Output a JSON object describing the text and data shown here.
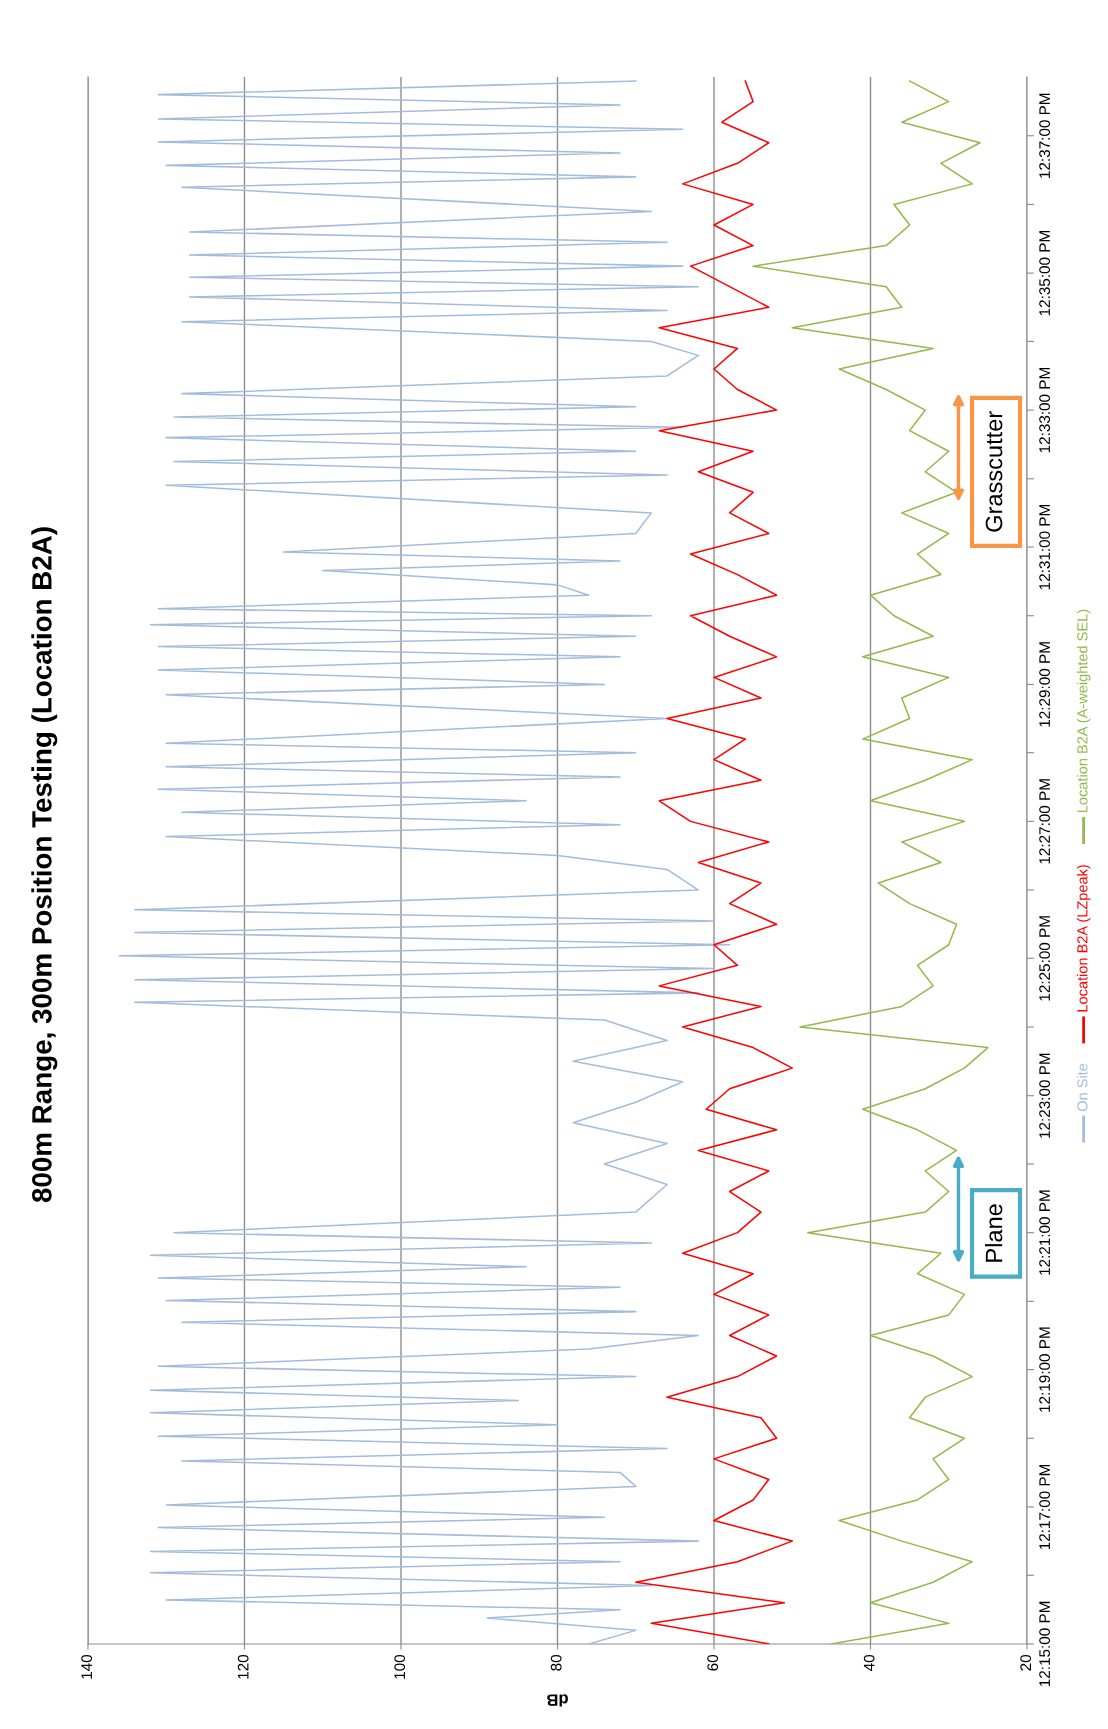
{
  "chart_data": {
    "type": "line",
    "title": "800m Range, 300m Position Testing (Location B2A)",
    "xlabel": "dB",
    "series": [
      {
        "name": "On Site",
        "color": "#a3bcdc",
        "values": [
          12.25,
          12.2533,
          12.2563,
          12.2583,
          12.2607,
          12.2642,
          12.2673,
          12.27,
          12.2725,
          12.275,
          12.2783,
          12.2808,
          12.2838,
          12.2883,
          12.2917,
          12.2945,
          12.2975,
          12.3005,
          12.3033,
          12.3062,
          12.3092,
          12.3117,
          12.315,
          12.3175,
          12.3217,
          12.325,
          12.3282,
          12.3308,
          12.3335,
          12.3367,
          12.339,
          12.3417,
          12.3445,
          12.3475,
          12.35,
          12.355,
          12.3617,
          12.3667,
          12.3717,
          12.3767,
          12.3817,
          12.3867,
          12.3917,
          12.3967,
          12.4017,
          12.406,
          12.4083,
          12.4115,
          12.4142,
          12.4173,
          12.42,
          12.423,
          12.4258,
          12.4285,
          12.4333,
          12.4383,
          12.4417,
          12.4463,
          12.4492,
          12.4522,
          12.455,
          12.4578,
          12.4608,
          12.4633,
          12.4667,
          12.469,
          12.475,
          12.4808,
          12.4833,
          12.4868,
          12.49,
          12.4925,
          12.495,
          12.4978,
          12.5,
          12.5017,
          12.505,
          12.5075,
          12.511,
          12.5133,
          12.5155,
          12.52,
          12.525,
          12.5317,
          12.5342,
          12.5375,
          12.54,
          12.5433,
          12.5458,
          12.5483,
          12.5508,
          12.554,
          12.5583,
          12.5633,
          12.5667,
          12.5715,
          12.5742,
          12.5775,
          12.58,
          12.5823,
          12.585,
          12.5877,
          12.5908,
          12.5933,
          12.5983,
          12.6042,
          12.6067,
          12.6095,
          12.6125,
          12.6152,
          12.6183,
          12.6208,
          12.6242,
          12.6267,
          12.63
        ],
        "x": [
          76,
          70,
          89,
          72,
          130,
          68,
          132,
          72,
          132,
          62,
          131,
          74,
          130,
          70,
          72,
          128,
          66,
          131,
          80,
          132,
          85,
          132,
          70,
          131,
          76,
          62,
          128,
          70,
          130,
          72,
          131,
          84,
          132,
          68,
          129,
          70,
          66,
          74,
          66,
          78,
          70,
          64,
          78,
          66,
          74,
          134,
          62,
          134,
          60,
          136,
          58,
          134,
          60,
          134,
          62,
          66,
          80,
          130,
          72,
          128,
          84,
          131,
          72,
          130,
          70,
          130,
          66,
          130,
          74,
          131,
          72,
          131,
          70,
          132,
          68,
          131,
          76,
          80,
          110,
          72,
          115,
          70,
          68,
          130,
          66,
          129,
          70,
          130,
          64,
          129,
          70,
          128,
          66,
          62,
          68,
          128,
          66,
          127,
          62,
          127,
          64,
          127,
          66,
          127,
          68,
          128,
          70,
          130,
          72,
          131,
          64,
          131,
          72,
          131,
          70
        ]
      },
      {
        "name": "Location B2A (LZpeak)",
        "color": "#ff0000",
        "values": [
          12.25,
          12.255,
          12.26,
          12.265,
          12.27,
          12.275,
          12.28,
          12.285,
          12.29,
          12.295,
          12.3,
          12.305,
          12.31,
          12.315,
          12.32,
          12.325,
          12.33,
          12.335,
          12.34,
          12.345,
          12.35,
          12.355,
          12.36,
          12.365,
          12.37,
          12.375,
          12.38,
          12.385,
          12.39,
          12.395,
          12.4,
          12.405,
          12.41,
          12.415,
          12.42,
          12.425,
          12.43,
          12.435,
          12.44,
          12.445,
          12.45,
          12.455,
          12.46,
          12.465,
          12.47,
          12.475,
          12.48,
          12.485,
          12.49,
          12.495,
          12.5,
          12.505,
          12.51,
          12.515,
          12.52,
          12.525,
          12.53,
          12.535,
          12.54,
          12.545,
          12.55,
          12.555,
          12.56,
          12.565,
          12.57,
          12.575,
          12.58,
          12.585,
          12.59,
          12.595,
          12.6,
          12.605,
          12.61,
          12.615,
          12.62,
          12.625,
          12.63
        ],
        "x": [
          53,
          68,
          51,
          70,
          57,
          50,
          60,
          55,
          53,
          60,
          52,
          54,
          66,
          57,
          52,
          58,
          53,
          60,
          55,
          64,
          57,
          54,
          58,
          53,
          62,
          52,
          61,
          58,
          50,
          55,
          64,
          54,
          67,
          57,
          60,
          52,
          58,
          54,
          62,
          53,
          63,
          67,
          54,
          60,
          56,
          66,
          54,
          60,
          52,
          58,
          63,
          52,
          57,
          63,
          53,
          58,
          55,
          62,
          55,
          67,
          52,
          57,
          60,
          57,
          67,
          53,
          58,
          63,
          55,
          60,
          55,
          64,
          57,
          53,
          59,
          55,
          56
        ]
      },
      {
        "name": "Location B2A (A-weighted SEL)",
        "color": "#92b94c",
        "values": [
          12.25,
          12.255,
          12.26,
          12.265,
          12.27,
          12.275,
          12.28,
          12.285,
          12.29,
          12.295,
          12.3,
          12.305,
          12.31,
          12.315,
          12.32,
          12.325,
          12.33,
          12.335,
          12.34,
          12.345,
          12.35,
          12.355,
          12.36,
          12.365,
          12.37,
          12.375,
          12.38,
          12.385,
          12.39,
          12.395,
          12.4,
          12.405,
          12.41,
          12.415,
          12.42,
          12.425,
          12.43,
          12.435,
          12.44,
          12.445,
          12.45,
          12.455,
          12.46,
          12.465,
          12.47,
          12.475,
          12.48,
          12.485,
          12.49,
          12.495,
          12.5,
          12.505,
          12.51,
          12.515,
          12.52,
          12.525,
          12.53,
          12.535,
          12.54,
          12.545,
          12.55,
          12.555,
          12.56,
          12.565,
          12.57,
          12.575,
          12.58,
          12.585,
          12.59,
          12.595,
          12.6,
          12.605,
          12.61,
          12.615,
          12.62,
          12.625,
          12.63
        ],
        "x": [
          45,
          30,
          40,
          32,
          27,
          36,
          44,
          34,
          30,
          32,
          28,
          35,
          33,
          27,
          32,
          40,
          30,
          28,
          34,
          31,
          48,
          33,
          30,
          33,
          29,
          34,
          41,
          33,
          28,
          25,
          49,
          36,
          32,
          34,
          30,
          29,
          35,
          39,
          31,
          36,
          28,
          40,
          33,
          27,
          41,
          35,
          36,
          30,
          41,
          32,
          37,
          40,
          31,
          34,
          30,
          36,
          29,
          33,
          30,
          35,
          33,
          38,
          44,
          32,
          50,
          36,
          38,
          55,
          38,
          35,
          37,
          27,
          31,
          26,
          36,
          30,
          35
        ]
      }
    ],
    "ylim": [
      12.25,
      12.631
    ],
    "yticks": [
      {
        "value": 12.25,
        "label": "12:15:00 PM"
      },
      {
        "value": 12.2667,
        "label": null
      },
      {
        "value": 12.2833,
        "label": "12:17:00 PM"
      },
      {
        "value": 12.3,
        "label": null
      },
      {
        "value": 12.3167,
        "label": "12:19:00 PM"
      },
      {
        "value": 12.3333,
        "label": null
      },
      {
        "value": 12.35,
        "label": "12:21:00 PM"
      },
      {
        "value": 12.3667,
        "label": null
      },
      {
        "value": 12.3833,
        "label": "12:23:00 PM"
      },
      {
        "value": 12.4,
        "label": null
      },
      {
        "value": 12.4167,
        "label": "12:25:00 PM"
      },
      {
        "value": 12.4333,
        "label": null
      },
      {
        "value": 12.45,
        "label": "12:27:00 PM"
      },
      {
        "value": 12.4667,
        "label": null
      },
      {
        "value": 12.4833,
        "label": "12:29:00 PM"
      },
      {
        "value": 12.5,
        "label": null
      },
      {
        "value": 12.5167,
        "label": "12:31:00 PM"
      },
      {
        "value": 12.5333,
        "label": null
      },
      {
        "value": 12.55,
        "label": "12:33:00 PM"
      },
      {
        "value": 12.5667,
        "label": null
      },
      {
        "value": 12.5833,
        "label": "12:35:00 PM"
      },
      {
        "value": 12.6,
        "label": null
      },
      {
        "value": 12.6167,
        "label": "12:37:00 PM"
      }
    ],
    "xlim": [
      140,
      20
    ],
    "xticks": [
      140,
      120,
      100,
      80,
      60,
      40,
      20
    ],
    "grid": "x",
    "legend": "right",
    "line_style": "solid",
    "marker": "none",
    "annotations": [
      "Plane",
      "Grasscutter"
    ]
  }
}
